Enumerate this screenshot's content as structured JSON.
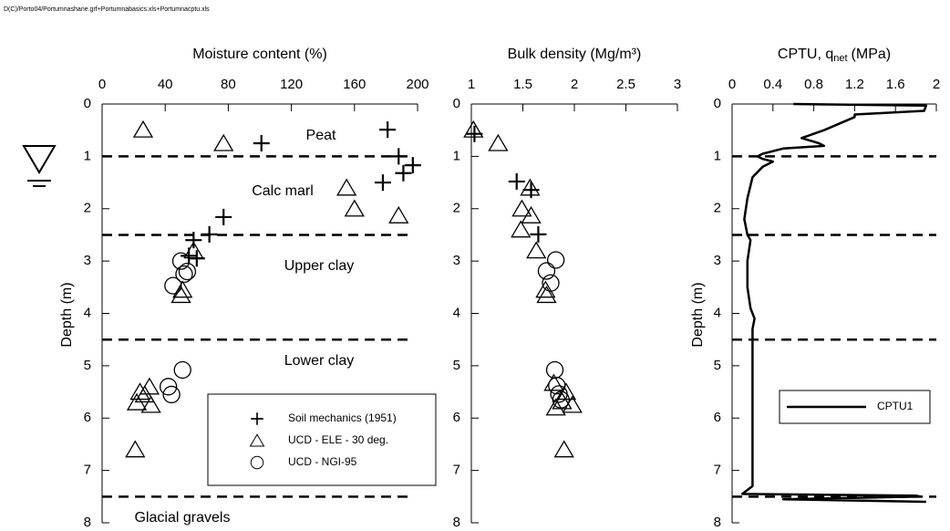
{
  "header": "D(C)/Porto04/Portumnashane.grf+Portumnabasics.xls+Portumnacptu.xls",
  "chart_data": [
    {
      "type": "scatter",
      "xlabel": "Moisture content (%)",
      "ylabel": "Depth (m)",
      "xlim": [
        0,
        200
      ],
      "xticks": [
        0,
        40,
        80,
        120,
        160,
        200
      ],
      "ylim": [
        0,
        8
      ],
      "yticks": [
        0,
        1,
        2,
        3,
        4,
        5,
        6,
        7,
        8
      ],
      "y_inverted": true,
      "hlines": [
        1,
        2.5,
        4.5,
        7.5
      ],
      "annotations": [
        "Peat",
        "Calc marl",
        "Upper clay",
        "Lower clay",
        "Glacial gravels"
      ],
      "legend": "lower right",
      "series": [
        {
          "name": "Soil mechanics (1951)",
          "marker": "plus",
          "color": "#000000",
          "x": [
            181,
            188,
            197,
            191,
            178,
            101,
            77,
            68,
            58,
            55,
            60
          ],
          "values": [
            0.49,
            1.0,
            1.17,
            1.32,
            1.5,
            0.75,
            2.16,
            2.49,
            2.6,
            2.9,
            2.95
          ]
        },
        {
          "name": "UCD - ELE - 30 deg.",
          "marker": "triangle",
          "color": "#000000",
          "x": [
            26,
            77,
            155,
            160,
            188,
            58,
            51,
            50,
            24,
            22,
            27,
            30,
            31,
            21
          ],
          "values": [
            0.49,
            0.75,
            1.6,
            2.0,
            2.13,
            2.8,
            3.55,
            3.65,
            5.5,
            5.7,
            5.55,
            5.4,
            5.75,
            6.6
          ]
        },
        {
          "name": "UCD - NGI-95",
          "marker": "circle",
          "color": "#000000",
          "x": [
            50,
            54,
            52,
            45,
            51,
            42,
            44
          ],
          "values": [
            3.0,
            3.2,
            3.25,
            3.47,
            5.08,
            5.4,
            5.55
          ]
        }
      ]
    },
    {
      "type": "scatter",
      "xlabel": "Bulk density (Mg/m³)",
      "xlim": [
        1,
        3
      ],
      "xticks": [
        1,
        1.5,
        2,
        2.5,
        3
      ],
      "ylim": [
        0,
        8
      ],
      "yticks": [
        0,
        1,
        2,
        3,
        4,
        5,
        6,
        7,
        8
      ],
      "y_inverted": true,
      "series": [
        {
          "marker": "plus",
          "color": "#000000",
          "x": [
            1.03,
            1.44,
            1.58,
            1.65
          ],
          "values": [
            0.57,
            1.48,
            1.64,
            2.49
          ]
        },
        {
          "marker": "triangle",
          "color": "#000000",
          "x": [
            1.02,
            1.26,
            1.57,
            1.49,
            1.58,
            1.48,
            1.63,
            1.72,
            1.73,
            1.8,
            1.92,
            1.82,
            1.88,
            1.98,
            1.9
          ],
          "values": [
            0.49,
            0.75,
            1.6,
            2.0,
            2.13,
            2.4,
            2.8,
            3.55,
            3.65,
            5.33,
            5.5,
            5.8,
            5.68,
            5.75,
            6.6
          ]
        },
        {
          "marker": "circle",
          "color": "#000000",
          "x": [
            1.82,
            1.73,
            1.77,
            1.81,
            1.83,
            1.85,
            1.87
          ],
          "values": [
            2.98,
            3.19,
            3.42,
            5.08,
            5.38,
            5.54,
            5.65
          ]
        }
      ]
    },
    {
      "type": "line",
      "xlabel": "CPTU, q",
      "xlabel_sub": "net",
      "xlabel_end": "(MPa)",
      "ylabel": "Depth (m)",
      "xlim": [
        0,
        2
      ],
      "xticks": [
        0,
        0.4,
        0.8,
        1.2,
        1.6,
        2
      ],
      "ylim": [
        0,
        8
      ],
      "yticks": [
        0,
        1,
        2,
        3,
        4,
        5,
        6,
        7,
        8
      ],
      "y_inverted": true,
      "hlines": [
        1,
        2.5,
        4.5,
        7.5
      ],
      "legend": "middle right",
      "series": [
        {
          "name": "CPTU1",
          "color": "#000000",
          "x": [
            0.6,
            1.9,
            1.88,
            1.2,
            1.2,
            0.9,
            0.68,
            0.85,
            0.9,
            0.5,
            0.3,
            0.25,
            0.3,
            0.4,
            0.3,
            0.2,
            0.15,
            0.12,
            0.15,
            0.18,
            0.15,
            0.15,
            0.18,
            0.22,
            0.2,
            0.2,
            0.2,
            0.2,
            0.2,
            0.1,
            1.8,
            1.85,
            0.5,
            1.9
          ],
          "values": [
            0.0,
            0.03,
            0.13,
            0.2,
            0.25,
            0.5,
            0.65,
            0.75,
            0.8,
            0.85,
            0.95,
            1.0,
            1.05,
            1.1,
            1.2,
            1.4,
            1.8,
            2.2,
            2.5,
            2.6,
            3.0,
            3.5,
            3.9,
            4.1,
            4.3,
            5.0,
            6.0,
            7.0,
            7.3,
            7.45,
            7.48,
            7.5,
            7.55,
            7.6
          ]
        }
      ]
    }
  ]
}
